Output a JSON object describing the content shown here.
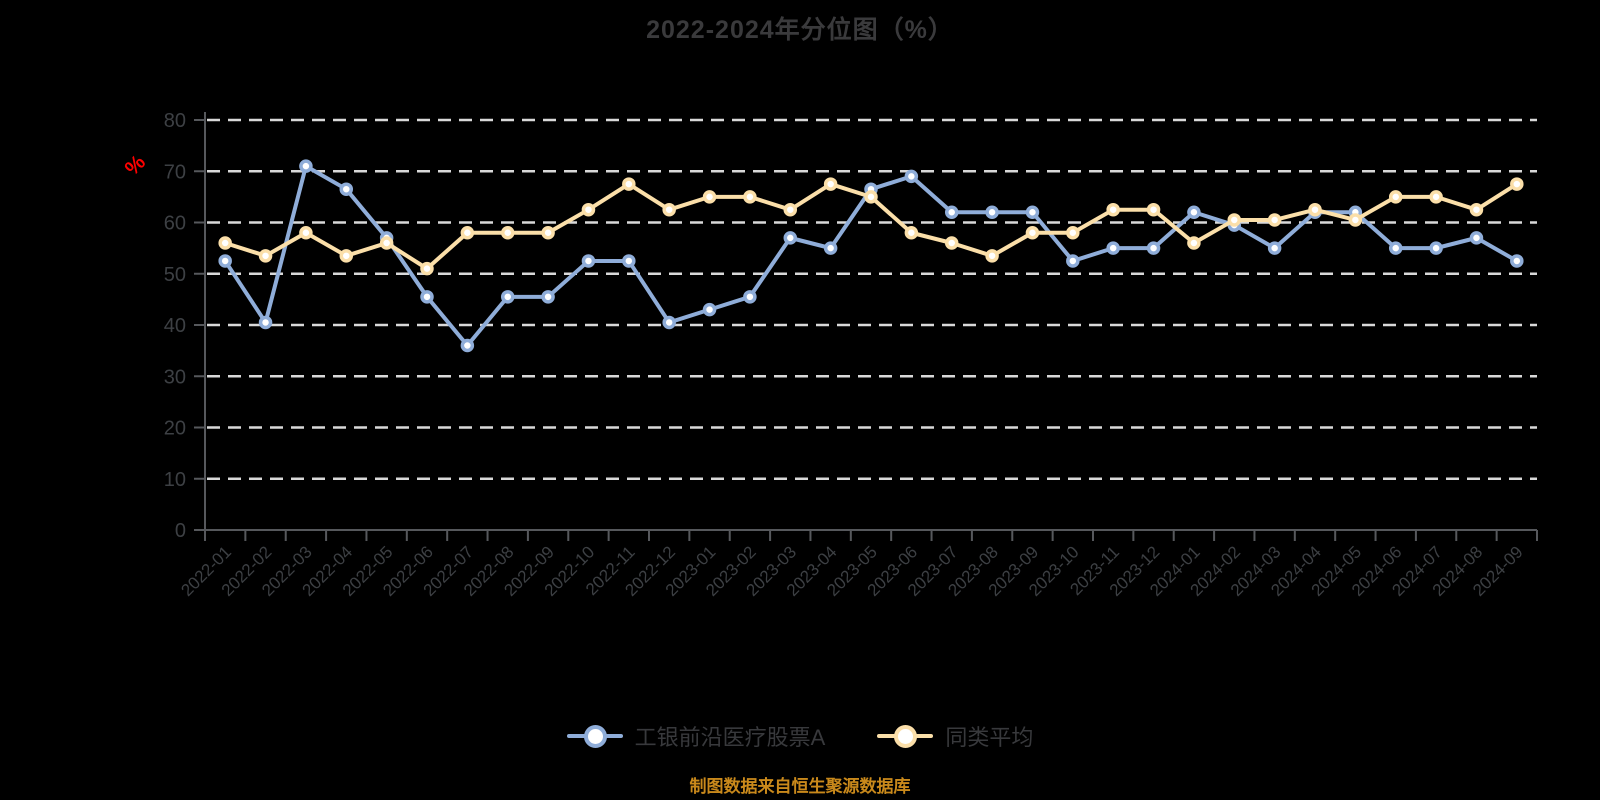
{
  "page": {
    "title": "2022-2024年分位图（%）",
    "footer": "制图数据来自恒生聚源数据库"
  },
  "colors": {
    "background": "#000000",
    "title_text": "#3a3a3c",
    "axis_line": "#56585c",
    "grid_line": "#d9d9d9",
    "tick_text": "#3d4044",
    "unit_text": "#ff0000",
    "legend_text": "#38393c",
    "footer_text": "#c9891b",
    "marker_fill": "#ffffff"
  },
  "chart_data": {
    "type": "line",
    "title": "2022-2024年分位图（%）",
    "xlabel": "",
    "ylabel": "%",
    "ylim": [
      0,
      80
    ],
    "ytick_step": 10,
    "grid": "horizontal-dashed",
    "legend_position": "bottom",
    "categories": [
      "2022-01",
      "2022-02",
      "2022-03",
      "2022-04",
      "2022-05",
      "2022-06",
      "2022-07",
      "2022-08",
      "2022-09",
      "2022-10",
      "2022-11",
      "2022-12",
      "2023-01",
      "2023-02",
      "2023-03",
      "2023-04",
      "2023-05",
      "2023-06",
      "2023-07",
      "2023-08",
      "2023-09",
      "2023-10",
      "2023-11",
      "2023-12",
      "2024-01",
      "2024-02",
      "2024-03",
      "2024-04",
      "2024-05",
      "2024-06",
      "2024-07",
      "2024-08",
      "2024-09"
    ],
    "series": [
      {
        "name": "工银前沿医疗股票A",
        "color": "#8fadd9",
        "values": [
          52.5,
          40.5,
          71,
          66.5,
          57,
          45.5,
          36,
          45.5,
          45.5,
          52.5,
          52.5,
          40.5,
          43,
          45.5,
          57,
          55,
          66.5,
          69,
          62,
          62,
          62,
          52.5,
          55,
          55,
          62,
          59.5,
          55,
          62,
          62,
          55,
          55,
          57,
          52.5
        ]
      },
      {
        "name": "同类平均",
        "color": "#fbdfa9",
        "values": [
          56,
          53.5,
          58,
          53.5,
          56,
          51,
          58,
          58,
          58,
          62.5,
          67.5,
          62.5,
          65,
          65,
          62.5,
          67.5,
          65,
          58,
          56,
          53.5,
          58,
          58,
          62.5,
          62.5,
          56,
          60.5,
          60.5,
          62.5,
          60.5,
          65,
          65,
          62.5,
          67.5
        ]
      }
    ]
  }
}
